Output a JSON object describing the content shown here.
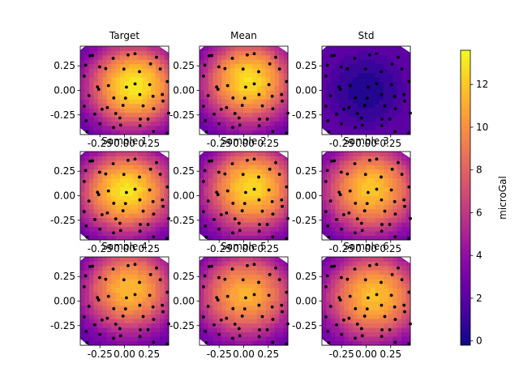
{
  "figure": {
    "colorbar": {
      "label": "microGal",
      "ticks": [
        0,
        2,
        4,
        6,
        8,
        10,
        12
      ],
      "vmin": -0.2,
      "vmax": 13.6,
      "colormap": "plasma"
    }
  },
  "chart_data": [
    {
      "type": "heatmap",
      "title": "Target",
      "xticks": [
        "-0.25",
        "0.00",
        "0.25"
      ],
      "yticks": [
        "0.25",
        "0.00",
        "-0.25"
      ],
      "xlim": [
        -0.45,
        0.45
      ],
      "ylim": [
        -0.45,
        0.45
      ],
      "peak": {
        "x": 0.1,
        "y": 0.05,
        "value": 13.2
      },
      "spread": {
        "sx": 0.33,
        "sy": 0.3
      },
      "baseline": 2.8,
      "points": true
    },
    {
      "type": "heatmap",
      "title": "Mean",
      "xticks": [
        "-0.25",
        "0.00",
        "0.25"
      ],
      "yticks": [
        "0.25",
        "0.00",
        "-0.25"
      ],
      "xlim": [
        -0.45,
        0.45
      ],
      "ylim": [
        -0.45,
        0.45
      ],
      "peak": {
        "x": 0.05,
        "y": 0.1,
        "value": 12.8
      },
      "spread": {
        "sx": 0.32,
        "sy": 0.3
      },
      "baseline": 2.8,
      "points": true
    },
    {
      "type": "heatmap",
      "title": "Std",
      "xticks": [
        "-0.25",
        "0.00",
        "0.25"
      ],
      "yticks": [
        "0.25",
        "0.00",
        "-0.25"
      ],
      "xlim": [
        -0.45,
        0.45
      ],
      "ylim": [
        -0.45,
        0.45
      ],
      "peak": {
        "x": 0.0,
        "y": 0.0,
        "value": 0.4
      },
      "spread": {
        "sx": 0.3,
        "sy": 0.3
      },
      "baseline": 1.6,
      "points": true,
      "rim_rise": true
    },
    {
      "type": "heatmap",
      "title": "Sample 1",
      "xticks": [
        "-0.25",
        "0.00",
        "0.25"
      ],
      "yticks": [
        "0.25",
        "0.00",
        "-0.25"
      ],
      "xlim": [
        -0.45,
        0.45
      ],
      "ylim": [
        -0.45,
        0.45
      ],
      "peak": {
        "x": 0.02,
        "y": 0.05,
        "value": 13.0
      },
      "spread": {
        "sx": 0.34,
        "sy": 0.3
      },
      "baseline": 2.6,
      "points": true
    },
    {
      "type": "heatmap",
      "title": "Sample 2",
      "xticks": [
        "-0.25",
        "0.00",
        "0.25"
      ],
      "yticks": [
        "0.25",
        "0.00",
        "-0.25"
      ],
      "xlim": [
        -0.45,
        0.45
      ],
      "ylim": [
        -0.45,
        0.45
      ],
      "peak": {
        "x": 0.08,
        "y": 0.08,
        "value": 12.6
      },
      "spread": {
        "sx": 0.33,
        "sy": 0.31
      },
      "baseline": 2.8,
      "points": true
    },
    {
      "type": "heatmap",
      "title": "Sample 3",
      "xticks": [
        "-0.25",
        "0.00",
        "0.25"
      ],
      "yticks": [
        "0.25",
        "0.00",
        "-0.25"
      ],
      "xlim": [
        -0.45,
        0.45
      ],
      "ylim": [
        -0.45,
        0.45
      ],
      "peak": {
        "x": 0.05,
        "y": 0.07,
        "value": 12.0
      },
      "spread": {
        "sx": 0.33,
        "sy": 0.31
      },
      "baseline": 2.8,
      "points": true
    },
    {
      "type": "heatmap",
      "title": "Sample 4",
      "xticks": [
        "-0.25",
        "0.00",
        "0.25"
      ],
      "yticks": [
        "0.25",
        "0.00",
        "-0.25"
      ],
      "xlim": [
        -0.45,
        0.45
      ],
      "ylim": [
        -0.45,
        0.45
      ],
      "peak": {
        "x": 0.05,
        "y": 0.12,
        "value": 11.6
      },
      "spread": {
        "sx": 0.32,
        "sy": 0.3
      },
      "baseline": 2.8,
      "points": true
    },
    {
      "type": "heatmap",
      "title": "Sample 5",
      "xticks": [
        "-0.25",
        "0.00",
        "0.25"
      ],
      "yticks": [
        "0.25",
        "0.00",
        "-0.25"
      ],
      "xlim": [
        -0.45,
        0.45
      ],
      "ylim": [
        -0.45,
        0.45
      ],
      "peak": {
        "x": 0.02,
        "y": 0.07,
        "value": 11.2
      },
      "spread": {
        "sx": 0.34,
        "sy": 0.3
      },
      "baseline": 2.8,
      "points": true
    },
    {
      "type": "heatmap",
      "title": "Sample 6",
      "xticks": [
        "-0.25",
        "0.00",
        "0.25"
      ],
      "yticks": [
        "0.25",
        "0.00",
        "-0.25"
      ],
      "xlim": [
        -0.45,
        0.45
      ],
      "ylim": [
        -0.45,
        0.45
      ],
      "peak": {
        "x": 0.08,
        "y": 0.05,
        "value": 11.8
      },
      "spread": {
        "sx": 0.34,
        "sy": 0.31
      },
      "baseline": 2.8,
      "points": true
    }
  ]
}
